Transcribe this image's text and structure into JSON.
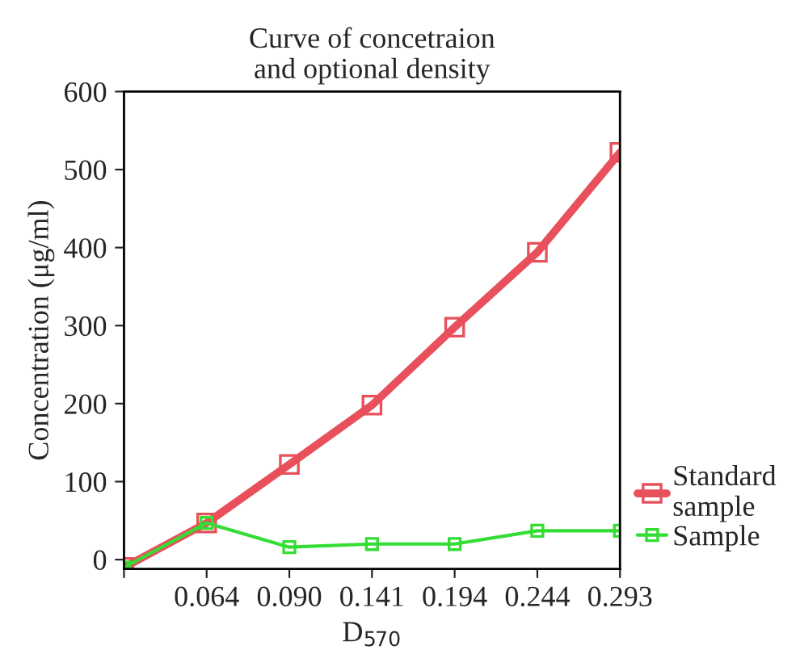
{
  "chart_data": {
    "type": "line",
    "title": "Curve of concetraion\nand optional density",
    "xlabel": "D$_{570}$",
    "ylabel": "Concentration (μg/ml)",
    "categories": [
      null,
      "0.064",
      "0.090",
      "0.141",
      "0.194",
      "0.244",
      "0.293"
    ],
    "series": [
      {
        "name": "Standard\nsample",
        "color": "#e8505b",
        "values": [
          -10,
          47,
          122,
          198,
          298,
          394,
          522
        ]
      },
      {
        "name": "Sample",
        "color": "#33dd33",
        "values": [
          -10,
          47,
          16,
          20,
          20,
          37,
          37
        ]
      }
    ],
    "ylim": [
      -12,
      600
    ],
    "yticks": [
      0,
      100,
      200,
      300,
      400,
      500,
      600
    ],
    "grid": false,
    "legend": "bottom right",
    "marker": "square",
    "line_style": "solid"
  }
}
